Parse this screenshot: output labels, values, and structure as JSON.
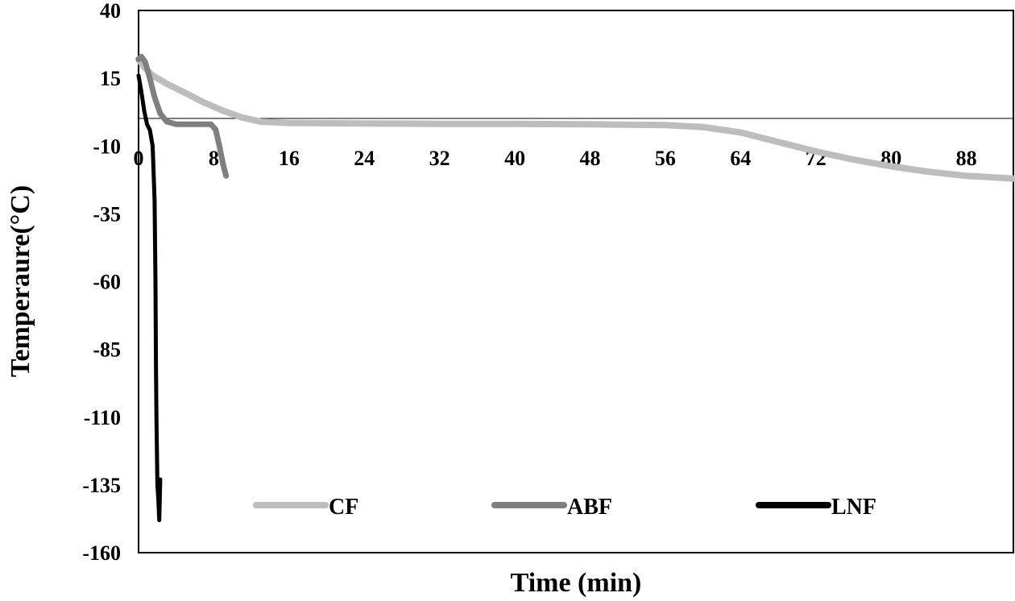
{
  "chart_data": {
    "type": "line",
    "title": "",
    "xlabel": "Time (min)",
    "ylabel": "Temperaure(°C)",
    "xlim": [
      0,
      93
    ],
    "ylim": [
      -160,
      40
    ],
    "x_ticks": [
      0,
      8,
      16,
      24,
      32,
      40,
      48,
      56,
      64,
      72,
      80,
      88
    ],
    "y_ticks": [
      40,
      15,
      -10,
      -35,
      -60,
      -85,
      -110,
      -135,
      -160
    ],
    "x_tick_labels": [
      "0",
      "8",
      "16",
      "24",
      "32",
      "40",
      "48",
      "56",
      "64",
      "72",
      "80",
      "88"
    ],
    "y_tick_labels": [
      "40",
      "15",
      "-10",
      "-35",
      "-60",
      "-85",
      "-110",
      "-135",
      "-160"
    ],
    "grid": false,
    "legend_position": "bottom",
    "series": [
      {
        "name": "CF",
        "color": "#bdbdbd",
        "x": [
          0,
          0.5,
          1.5,
          3,
          5,
          7,
          9,
          11,
          13,
          16,
          24,
          32,
          40,
          48,
          56,
          60,
          64,
          68,
          72,
          76,
          80,
          84,
          88,
          93
        ],
        "y": [
          22,
          19.5,
          16,
          13,
          9.5,
          6,
          3,
          0.5,
          -1,
          -1.5,
          -1.7,
          -1.8,
          -1.8,
          -2,
          -2.3,
          -3,
          -5,
          -8.5,
          -12,
          -15,
          -17.5,
          -19.5,
          -21,
          -22
        ]
      },
      {
        "name": "ABF",
        "color": "#7f7f7f",
        "x": [
          0,
          0.3,
          0.7,
          1.2,
          1.7,
          2.3,
          3,
          4,
          5,
          6,
          7,
          7.7,
          8.2,
          8.6,
          9,
          9.3
        ],
        "y": [
          22,
          23,
          21,
          15,
          8,
          2,
          -1,
          -2,
          -2,
          -2,
          -2,
          -2,
          -4,
          -10,
          -17,
          -21
        ]
      },
      {
        "name": "LNF",
        "color": "#000000",
        "x": [
          0,
          0.3,
          0.6,
          0.9,
          1.2,
          1.5,
          1.7,
          1.8,
          1.85,
          1.9,
          2.0,
          2.1,
          2.2,
          2.3
        ],
        "y": [
          16,
          10,
          3,
          -2,
          -4,
          -10,
          -30,
          -60,
          -90,
          -110,
          -135,
          -140,
          -148,
          -133
        ]
      }
    ]
  }
}
